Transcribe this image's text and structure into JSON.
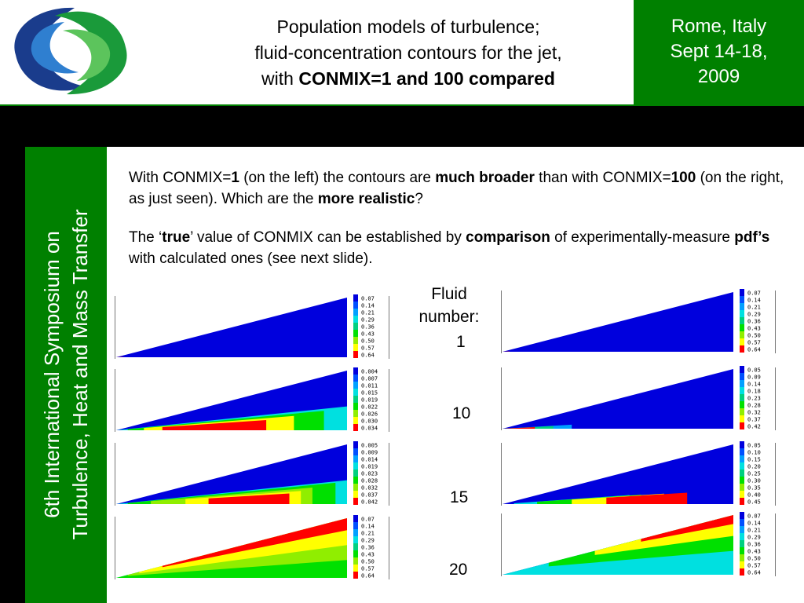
{
  "header": {
    "title_line1": "Population models of turbulence;",
    "title_line2": "fluid-concentration contours for the jet,",
    "title_line3_prefix": "with ",
    "title_line3_bold": "CONMIX=1 and 100 compared",
    "venue_line1": "Rome, Italy",
    "venue_line2": "Sept 14-18,",
    "venue_line3": "2009"
  },
  "sidebar": {
    "line1": "6th International Symposium on",
    "line2": "Turbulence, Heat and Mass Transfer"
  },
  "body": {
    "p1": {
      "t1": "With CONMIX=",
      "b1": "1",
      "t2": " (on the left) the contours are ",
      "b2": "much broader",
      "t3": " than with CONMIX=",
      "b3": "100",
      "t4": " (on the right, as just seen). Which are the ",
      "b4": "more realistic",
      "t5": "?"
    },
    "p2": {
      "t1": "The ‘",
      "b1": "true",
      "t2": "’ value of CONMIX can be established by ",
      "b2": "comparison",
      "t3": " of experimentally-measure ",
      "b3": "pdf’s",
      "t4": " with calculated ones (see next slide)."
    }
  },
  "fluid_label_line1": "Fluid",
  "fluid_label_line2": "number:",
  "fluid_numbers": [
    "1",
    "10",
    "15",
    "20"
  ],
  "colors": {
    "green": "#008000",
    "contour_scale": [
      "#0000dd",
      "#0050ff",
      "#00a0ff",
      "#00e0e0",
      "#00d080",
      "#00e000",
      "#90ee00",
      "#ffff00",
      "#ff0000"
    ]
  },
  "plots": [
    {
      "side": "left",
      "fluid": "1",
      "legend": [
        "0.07",
        "0.14",
        "0.21",
        "0.29",
        "0.36",
        "0.43",
        "0.50",
        "0.57",
        "0.64"
      ]
    },
    {
      "side": "right",
      "fluid": "1",
      "legend": [
        "0.07",
        "0.14",
        "0.21",
        "0.29",
        "0.36",
        "0.43",
        "0.50",
        "0.57",
        "0.64"
      ]
    },
    {
      "side": "left",
      "fluid": "10",
      "legend": [
        "0.004",
        "0.007",
        "0.011",
        "0.015",
        "0.019",
        "0.022",
        "0.026",
        "0.030",
        "0.034"
      ]
    },
    {
      "side": "right",
      "fluid": "10",
      "legend": [
        "0.05",
        "0.09",
        "0.14",
        "0.18",
        "0.23",
        "0.28",
        "0.32",
        "0.37",
        "0.42"
      ]
    },
    {
      "side": "left",
      "fluid": "15",
      "legend": [
        "0.005",
        "0.009",
        "0.014",
        "0.019",
        "0.023",
        "0.028",
        "0.032",
        "0.037",
        "0.042"
      ]
    },
    {
      "side": "right",
      "fluid": "15",
      "legend": [
        "0.05",
        "0.10",
        "0.15",
        "0.20",
        "0.25",
        "0.30",
        "0.35",
        "0.40",
        "0.45"
      ]
    },
    {
      "side": "left",
      "fluid": "20",
      "legend": [
        "0.07",
        "0.14",
        "0.21",
        "0.29",
        "0.36",
        "0.43",
        "0.50",
        "0.57",
        "0.64"
      ]
    },
    {
      "side": "right",
      "fluid": "20",
      "legend": [
        "0.07",
        "0.14",
        "0.21",
        "0.29",
        "0.36",
        "0.43",
        "0.50",
        "0.57",
        "0.64"
      ]
    }
  ]
}
